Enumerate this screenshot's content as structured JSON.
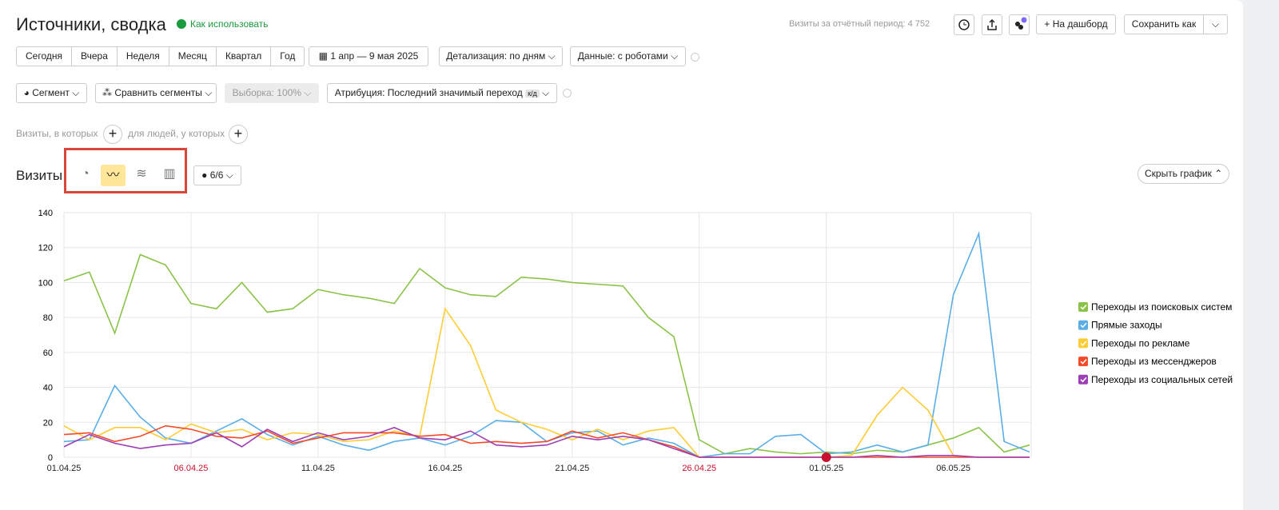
{
  "header": {
    "title": "Источники, сводка",
    "help_link": "Как использовать",
    "visits_summary": "Визиты за отчётный период: 4 752",
    "dashboard": "На дашборд",
    "save_as": "Сохранить как"
  },
  "toolbar": {
    "periods": [
      "Сегодня",
      "Вчера",
      "Неделя",
      "Месяц",
      "Квартал",
      "Год"
    ],
    "date_range": "1 апр — 9 мая 2025",
    "detail": "Детализация: по дням",
    "data_mode": "Данные: с роботами",
    "segment": "Сегмент",
    "compare": "Сравнить сегменты",
    "sample": "Выборка: 100%",
    "attribution": "Атрибуция: Последний значимый переход",
    "attribution_badge": "к/д",
    "visits_filter": "Визиты, в которых",
    "people_filter": "для людей, у которых"
  },
  "chart_section": {
    "title": "Визиты",
    "comments": "6/6",
    "hide_chart": "Скрыть график"
  },
  "chart_data": {
    "type": "line",
    "categories": [
      "01.04.25",
      null,
      null,
      null,
      null,
      "06.04.25",
      null,
      null,
      null,
      null,
      "11.04.25",
      null,
      null,
      null,
      null,
      "16.04.25",
      null,
      null,
      null,
      null,
      "21.04.25",
      null,
      null,
      null,
      null,
      "26.04.25",
      null,
      null,
      null,
      null,
      "01.05.25",
      null,
      null,
      null,
      null,
      "06.05.25",
      null,
      null,
      null
    ],
    "holidays": [
      "06.04.25",
      "26.04.25"
    ],
    "holiday_color": "#c8102e",
    "ylim": [
      0,
      140
    ],
    "yticks": [
      0,
      20,
      40,
      60,
      80,
      100,
      120,
      140
    ],
    "grid": true,
    "series": [
      {
        "name": "Переходы из поисковых систем",
        "color": "#8bc34a",
        "values": [
          101,
          106,
          71,
          116,
          110,
          88,
          85,
          100,
          83,
          85,
          96,
          93,
          91,
          88,
          108,
          97,
          93,
          92,
          103,
          102,
          100,
          99,
          98,
          80,
          69,
          10,
          2,
          5,
          3,
          2,
          3,
          2,
          4,
          3,
          7,
          11,
          17,
          3,
          7
        ]
      },
      {
        "name": "Прямые заходы",
        "color": "#5aaee8",
        "values": [
          9,
          10,
          41,
          23,
          11,
          8,
          15,
          22,
          13,
          7,
          12,
          7,
          4,
          9,
          11,
          7,
          12,
          21,
          20,
          9,
          14,
          15,
          7,
          11,
          8,
          0,
          2,
          2,
          12,
          13,
          2,
          3,
          7,
          3,
          7,
          93,
          128,
          9,
          3
        ]
      },
      {
        "name": "Переходы по рекламе",
        "color": "#ffcc33",
        "values": [
          18,
          10,
          17,
          17,
          10,
          19,
          14,
          16,
          10,
          14,
          13,
          9,
          10,
          15,
          12,
          85,
          64,
          27,
          20,
          16,
          10,
          16,
          10,
          15,
          17,
          0,
          0,
          0,
          0,
          0,
          0,
          1,
          24,
          40,
          27,
          1,
          0,
          0,
          0
        ]
      },
      {
        "name": "Переходы из мессенджеров",
        "color": "#f44a2a",
        "values": [
          13,
          14,
          9,
          12,
          18,
          16,
          12,
          11,
          15,
          8,
          11,
          14,
          14,
          14,
          12,
          13,
          8,
          9,
          8,
          9,
          15,
          11,
          14,
          10,
          6,
          0,
          0,
          0,
          0,
          0,
          0,
          0,
          0,
          0,
          0,
          0,
          0,
          0,
          0
        ]
      },
      {
        "name": "Переходы из социальных сетей",
        "color": "#9c3fb5",
        "values": [
          6,
          13,
          8,
          5,
          7,
          8,
          14,
          6,
          16,
          9,
          14,
          10,
          12,
          17,
          11,
          10,
          15,
          7,
          6,
          7,
          12,
          10,
          12,
          10,
          5,
          0,
          0,
          0,
          0,
          0,
          0,
          0,
          1,
          0,
          1,
          1,
          0,
          0,
          0
        ]
      }
    ]
  }
}
